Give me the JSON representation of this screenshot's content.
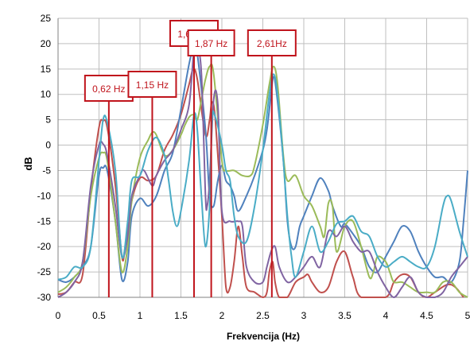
{
  "chart_data": {
    "type": "line",
    "xlabel": "Frekvencija (Hz)",
    "ylabel": "dB",
    "xlim": [
      0,
      5
    ],
    "ylim": [
      -30,
      25
    ],
    "x_ticks": [
      "0",
      "0.5",
      "1",
      "1.5",
      "2",
      "2.5",
      "3",
      "3.5",
      "4",
      "4.5",
      "5"
    ],
    "y_ticks": [
      "25",
      "20",
      "15",
      "10",
      "5",
      "0",
      "-5",
      "-10",
      "-15",
      "-20",
      "-25",
      "-30"
    ],
    "grid": "horizontal and vertical",
    "colors": {
      "red": "#c0504d",
      "blue": "#4f81bd",
      "green": "#9bbb59",
      "purple": "#8064a2",
      "steel": "#4aacc6",
      "annotation": "#c0141c"
    },
    "annotations": [
      {
        "x": 0.62,
        "label": "0,62 Hz"
      },
      {
        "x": 1.15,
        "label": "1,15 Hz"
      },
      {
        "x": 1.66,
        "label": "1,66 Hz"
      },
      {
        "x": 1.87,
        "label": "1,87 Hz"
      },
      {
        "x": 2.61,
        "label": "2,61Hz"
      }
    ],
    "series": [
      {
        "color": "red",
        "points": [
          [
            0,
            -29.4
          ],
          [
            0.1,
            -29
          ],
          [
            0.2,
            -27
          ],
          [
            0.3,
            -25.5
          ],
          [
            0.4,
            -9
          ],
          [
            0.5,
            3.5
          ],
          [
            0.55,
            4.8
          ],
          [
            0.6,
            3.5
          ],
          [
            0.7,
            -8
          ],
          [
            0.78,
            -22
          ],
          [
            0.82,
            -20
          ],
          [
            0.9,
            -11
          ],
          [
            1,
            -6.5
          ],
          [
            1.1,
            -7
          ],
          [
            1.2,
            -6
          ],
          [
            1.3,
            -1
          ],
          [
            1.4,
            2
          ],
          [
            1.5,
            6
          ],
          [
            1.6,
            12
          ],
          [
            1.65,
            15
          ],
          [
            1.7,
            13
          ],
          [
            1.8,
            2
          ],
          [
            1.85,
            5
          ],
          [
            1.88,
            8.5
          ],
          [
            1.92,
            5
          ],
          [
            2,
            -14
          ],
          [
            2.05,
            -28
          ],
          [
            2.1,
            -28
          ],
          [
            2.15,
            -23
          ],
          [
            2.2,
            -16
          ],
          [
            2.25,
            -22
          ],
          [
            2.3,
            -28
          ],
          [
            2.4,
            -29
          ],
          [
            2.5,
            -30
          ],
          [
            2.55,
            -29
          ],
          [
            2.58,
            -25
          ],
          [
            2.62,
            -23
          ],
          [
            2.65,
            -27
          ],
          [
            2.7,
            -30
          ],
          [
            2.8,
            -30
          ],
          [
            2.9,
            -27
          ],
          [
            3,
            -26
          ],
          [
            3.05,
            -25.5
          ],
          [
            3.1,
            -27
          ],
          [
            3.2,
            -29
          ],
          [
            3.3,
            -28
          ],
          [
            3.4,
            -23
          ],
          [
            3.5,
            -21
          ],
          [
            3.6,
            -26
          ],
          [
            3.7,
            -30
          ],
          [
            4,
            -30
          ],
          [
            4.1,
            -27
          ],
          [
            4.2,
            -25.5
          ],
          [
            4.3,
            -26
          ],
          [
            4.4,
            -29
          ],
          [
            4.5,
            -30
          ],
          [
            4.6,
            -29
          ],
          [
            4.75,
            -27.5
          ],
          [
            4.85,
            -28
          ],
          [
            4.95,
            -30
          ]
        ]
      },
      {
        "color": "blue",
        "points": [
          [
            0,
            -26.5
          ],
          [
            0.1,
            -27
          ],
          [
            0.2,
            -26
          ],
          [
            0.3,
            -24
          ],
          [
            0.4,
            -20
          ],
          [
            0.5,
            -6
          ],
          [
            0.55,
            -4.5
          ],
          [
            0.6,
            -5
          ],
          [
            0.7,
            -15
          ],
          [
            0.78,
            -26.5
          ],
          [
            0.85,
            -23
          ],
          [
            0.9,
            -14
          ],
          [
            1,
            -10.5
          ],
          [
            1.1,
            -12
          ],
          [
            1.2,
            -10
          ],
          [
            1.3,
            -5
          ],
          [
            1.4,
            -1.5
          ],
          [
            1.5,
            7
          ],
          [
            1.6,
            16
          ],
          [
            1.66,
            19.5
          ],
          [
            1.7,
            18
          ],
          [
            1.8,
            3
          ],
          [
            1.85,
            -10
          ],
          [
            1.9,
            -12
          ],
          [
            1.95,
            -7
          ],
          [
            2,
            -4
          ],
          [
            2.05,
            -7
          ],
          [
            2.1,
            -8
          ],
          [
            2.15,
            -10
          ],
          [
            2.2,
            -13
          ],
          [
            2.3,
            -10
          ],
          [
            2.4,
            -6
          ],
          [
            2.5,
            -1
          ],
          [
            2.55,
            3
          ],
          [
            2.6,
            10
          ],
          [
            2.63,
            13.5
          ],
          [
            2.67,
            10
          ],
          [
            2.75,
            -3
          ],
          [
            2.8,
            -15
          ],
          [
            2.85,
            -20
          ],
          [
            2.9,
            -20
          ],
          [
            2.95,
            -16
          ],
          [
            3,
            -14
          ],
          [
            3.1,
            -10
          ],
          [
            3.2,
            -6.5
          ],
          [
            3.3,
            -9
          ],
          [
            3.35,
            -12
          ],
          [
            3.45,
            -16
          ],
          [
            3.5,
            -15.5
          ],
          [
            3.6,
            -17.5
          ],
          [
            3.7,
            -20
          ],
          [
            3.8,
            -24
          ],
          [
            3.9,
            -25
          ],
          [
            4,
            -22
          ],
          [
            4.1,
            -19
          ],
          [
            4.2,
            -16
          ],
          [
            4.3,
            -17
          ],
          [
            4.4,
            -21
          ],
          [
            4.5,
            -24
          ],
          [
            4.6,
            -26
          ],
          [
            4.7,
            -26
          ],
          [
            4.8,
            -27
          ],
          [
            4.9,
            -23
          ],
          [
            4.95,
            -15
          ],
          [
            5,
            -5
          ]
        ]
      },
      {
        "color": "green",
        "points": [
          [
            0,
            -29
          ],
          [
            0.1,
            -28
          ],
          [
            0.2,
            -26
          ],
          [
            0.3,
            -23
          ],
          [
            0.4,
            -10
          ],
          [
            0.5,
            -2.5
          ],
          [
            0.55,
            -1.5
          ],
          [
            0.6,
            -3
          ],
          [
            0.7,
            -15
          ],
          [
            0.78,
            -25
          ],
          [
            0.85,
            -20
          ],
          [
            0.9,
            -11
          ],
          [
            1,
            -2.5
          ],
          [
            1.1,
            1
          ],
          [
            1.15,
            2.5
          ],
          [
            1.2,
            2
          ],
          [
            1.3,
            -2
          ],
          [
            1.4,
            -1
          ],
          [
            1.5,
            2
          ],
          [
            1.55,
            4
          ],
          [
            1.6,
            5.5
          ],
          [
            1.65,
            6
          ],
          [
            1.7,
            5
          ],
          [
            1.75,
            9
          ],
          [
            1.8,
            13
          ],
          [
            1.85,
            15.5
          ],
          [
            1.9,
            14
          ],
          [
            2,
            -3
          ],
          [
            2.05,
            -5
          ],
          [
            2.15,
            -5
          ],
          [
            2.25,
            -6
          ],
          [
            2.35,
            -6
          ],
          [
            2.4,
            -4
          ],
          [
            2.5,
            4
          ],
          [
            2.58,
            12
          ],
          [
            2.63,
            15.5
          ],
          [
            2.68,
            12
          ],
          [
            2.75,
            -2
          ],
          [
            2.8,
            -7
          ],
          [
            2.9,
            -6
          ],
          [
            3,
            -10
          ],
          [
            3.1,
            -12
          ],
          [
            3.2,
            -16
          ],
          [
            3.25,
            -18
          ],
          [
            3.3,
            -11.5
          ],
          [
            3.35,
            -12
          ],
          [
            3.4,
            -21
          ],
          [
            3.5,
            -16
          ],
          [
            3.6,
            -15
          ],
          [
            3.7,
            -20
          ],
          [
            3.8,
            -26
          ],
          [
            3.85,
            -25
          ],
          [
            3.9,
            -22
          ],
          [
            4,
            -23
          ],
          [
            4.05,
            -25
          ],
          [
            4.1,
            -27
          ],
          [
            4.2,
            -27
          ],
          [
            4.3,
            -28
          ],
          [
            4.4,
            -29
          ],
          [
            4.5,
            -29
          ],
          [
            4.6,
            -29
          ],
          [
            4.7,
            -27
          ],
          [
            4.8,
            -27
          ],
          [
            4.9,
            -29
          ],
          [
            5,
            -30
          ]
        ]
      },
      {
        "color": "purple",
        "points": [
          [
            0,
            -30
          ],
          [
            0.1,
            -29
          ],
          [
            0.2,
            -27
          ],
          [
            0.3,
            -23
          ],
          [
            0.4,
            -8
          ],
          [
            0.5,
            0
          ],
          [
            0.55,
            0.2
          ],
          [
            0.6,
            -2
          ],
          [
            0.7,
            -12
          ],
          [
            0.78,
            -22
          ],
          [
            0.85,
            -18
          ],
          [
            0.9,
            -10
          ],
          [
            1,
            -6
          ],
          [
            1.05,
            -5
          ],
          [
            1.15,
            -8
          ],
          [
            1.2,
            -6
          ],
          [
            1.3,
            -3
          ],
          [
            1.4,
            -1
          ],
          [
            1.5,
            3
          ],
          [
            1.6,
            8
          ],
          [
            1.66,
            19
          ],
          [
            1.7,
            19.5
          ],
          [
            1.75,
            14
          ],
          [
            1.8,
            -10
          ],
          [
            1.82,
            -12
          ],
          [
            1.85,
            -7
          ],
          [
            1.9,
            9
          ],
          [
            1.95,
            8
          ],
          [
            2,
            -13
          ],
          [
            2.1,
            -15
          ],
          [
            2.2,
            -15
          ],
          [
            2.25,
            -16
          ],
          [
            2.3,
            -24
          ],
          [
            2.4,
            -27
          ],
          [
            2.5,
            -27
          ],
          [
            2.55,
            -24
          ],
          [
            2.6,
            -21
          ],
          [
            2.65,
            -20
          ],
          [
            2.7,
            -24
          ],
          [
            2.8,
            -27
          ],
          [
            2.9,
            -26
          ],
          [
            3,
            -24
          ],
          [
            3.1,
            -22
          ],
          [
            3.2,
            -24
          ],
          [
            3.3,
            -17
          ],
          [
            3.4,
            -18
          ],
          [
            3.5,
            -16
          ],
          [
            3.6,
            -19
          ],
          [
            3.7,
            -21
          ],
          [
            3.8,
            -21
          ],
          [
            3.9,
            -25
          ],
          [
            4,
            -28
          ],
          [
            4.1,
            -30
          ],
          [
            4.2,
            -28
          ],
          [
            4.3,
            -26
          ],
          [
            4.4,
            -29
          ],
          [
            4.5,
            -30
          ],
          [
            4.6,
            -30
          ],
          [
            4.7,
            -29
          ],
          [
            4.8,
            -26
          ],
          [
            4.9,
            -24
          ],
          [
            5,
            -22
          ]
        ]
      },
      {
        "color": "steel",
        "points": [
          [
            0,
            -26.5
          ],
          [
            0.1,
            -26
          ],
          [
            0.2,
            -24
          ],
          [
            0.3,
            -24
          ],
          [
            0.4,
            -20
          ],
          [
            0.5,
            -3
          ],
          [
            0.55,
            5
          ],
          [
            0.6,
            4.5
          ],
          [
            0.7,
            -5
          ],
          [
            0.78,
            -22
          ],
          [
            0.85,
            -15
          ],
          [
            0.9,
            -7
          ],
          [
            1,
            -6
          ],
          [
            1.1,
            -1
          ],
          [
            1.2,
            1.5
          ],
          [
            1.3,
            -2
          ],
          [
            1.35,
            -7
          ],
          [
            1.4,
            -13
          ],
          [
            1.45,
            -16
          ],
          [
            1.5,
            -13
          ],
          [
            1.6,
            -3
          ],
          [
            1.66,
            6
          ],
          [
            1.7,
            3
          ],
          [
            1.75,
            -10
          ],
          [
            1.8,
            -20
          ],
          [
            1.85,
            -12
          ],
          [
            1.88,
            5
          ],
          [
            1.92,
            5.5
          ],
          [
            2,
            0
          ],
          [
            2.05,
            -5
          ],
          [
            2.1,
            -7
          ],
          [
            2.15,
            -14
          ],
          [
            2.2,
            -18
          ],
          [
            2.3,
            -19
          ],
          [
            2.4,
            -12
          ],
          [
            2.5,
            -1
          ],
          [
            2.58,
            10
          ],
          [
            2.63,
            14
          ],
          [
            2.68,
            10
          ],
          [
            2.75,
            -3
          ],
          [
            2.8,
            -14
          ],
          [
            2.85,
            -22
          ],
          [
            2.9,
            -26
          ],
          [
            3,
            -21
          ],
          [
            3.1,
            -16
          ],
          [
            3.2,
            -21
          ],
          [
            3.3,
            -19
          ],
          [
            3.4,
            -15.5
          ],
          [
            3.5,
            -15
          ],
          [
            3.6,
            -14
          ],
          [
            3.7,
            -17
          ],
          [
            3.8,
            -18
          ],
          [
            3.9,
            -22
          ],
          [
            4,
            -24
          ],
          [
            4.1,
            -23
          ],
          [
            4.2,
            -22
          ],
          [
            4.3,
            -23
          ],
          [
            4.4,
            -24
          ],
          [
            4.5,
            -24
          ],
          [
            4.6,
            -20
          ],
          [
            4.7,
            -12
          ],
          [
            4.75,
            -10
          ],
          [
            4.8,
            -11
          ],
          [
            4.9,
            -17
          ],
          [
            5,
            -22
          ]
        ]
      }
    ]
  }
}
